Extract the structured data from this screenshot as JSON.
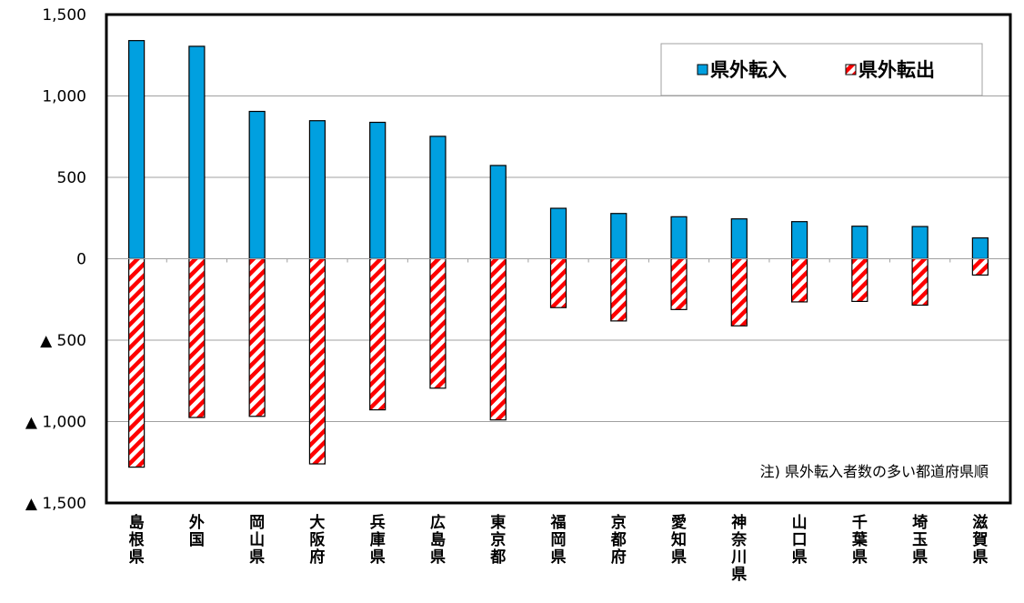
{
  "chart_data": {
    "type": "bar",
    "title": "",
    "xlabel": "",
    "ylabel": "",
    "ylim": [
      -1500,
      1500
    ],
    "yticks": [
      {
        "value": 1500,
        "label": "1,500"
      },
      {
        "value": 1000,
        "label": "1,000"
      },
      {
        "value": 500,
        "label": "500"
      },
      {
        "value": 0,
        "label": "0"
      },
      {
        "value": -500,
        "label": "▲ 500"
      },
      {
        "value": -1000,
        "label": "▲ 1,000"
      },
      {
        "value": -1500,
        "label": "▲ 1,500"
      }
    ],
    "categories": [
      "島根県",
      "外国",
      "岡山県",
      "大阪府",
      "兵庫県",
      "広島県",
      "東京都",
      "福岡県",
      "京都府",
      "愛知県",
      "神奈川県",
      "山口県",
      "千葉県",
      "埼玉県",
      "滋賀県"
    ],
    "series": [
      {
        "name": "県外転入",
        "values": [
          1340,
          1305,
          905,
          848,
          838,
          752,
          573,
          310,
          278,
          258,
          245,
          228,
          200,
          198,
          128
        ]
      },
      {
        "name": "県外転出",
        "values": [
          -1280,
          -975,
          -968,
          -1260,
          -928,
          -795,
          -990,
          -300,
          -382,
          -312,
          -412,
          -265,
          -262,
          -285,
          -100
        ]
      }
    ],
    "colors": {
      "inflow": "#00A0E0",
      "outflow_stripe": "#FF0000",
      "outflow_bg": "#FFFFFF",
      "border": "#000000",
      "grid": "#A0A0A0"
    },
    "grid": true,
    "legend_position": "top-right",
    "annotation": "注) 県外転入者数の多い都道府県順"
  }
}
